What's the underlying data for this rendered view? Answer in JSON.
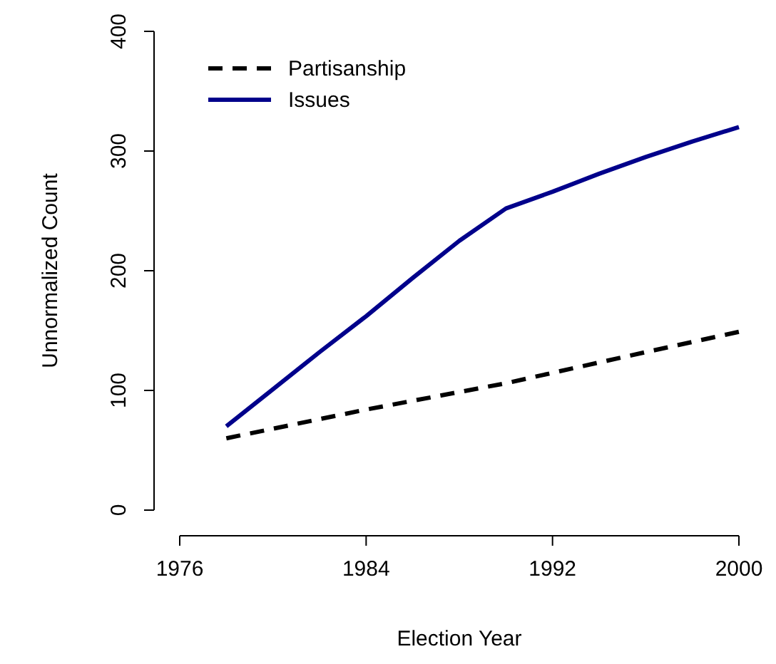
{
  "chart_data": {
    "type": "line",
    "xlabel": "Election Year",
    "ylabel": "Unnormalized Count",
    "xlim": [
      1976,
      2000
    ],
    "xticks": [
      1976,
      1984,
      1992,
      2000
    ],
    "ylim": [
      0,
      400
    ],
    "yticks": [
      0,
      100,
      200,
      300,
      400
    ],
    "grid": false,
    "legend": "top left",
    "series": [
      {
        "name": "Partisanship",
        "color": "#000000",
        "line_style": "dashed",
        "x": [
          1978,
          1984,
          1990,
          1996,
          2000
        ],
        "values": [
          60,
          84,
          106,
          132,
          149
        ]
      },
      {
        "name": "Issues",
        "color": "#00008b",
        "line_style": "solid",
        "x": [
          1978,
          1980,
          1982,
          1984,
          1986,
          1988,
          1990,
          1992,
          1994,
          1996,
          1998,
          2000
        ],
        "values": [
          70,
          101,
          132,
          162,
          194,
          225,
          252,
          266,
          281,
          295,
          308,
          320
        ]
      }
    ]
  }
}
